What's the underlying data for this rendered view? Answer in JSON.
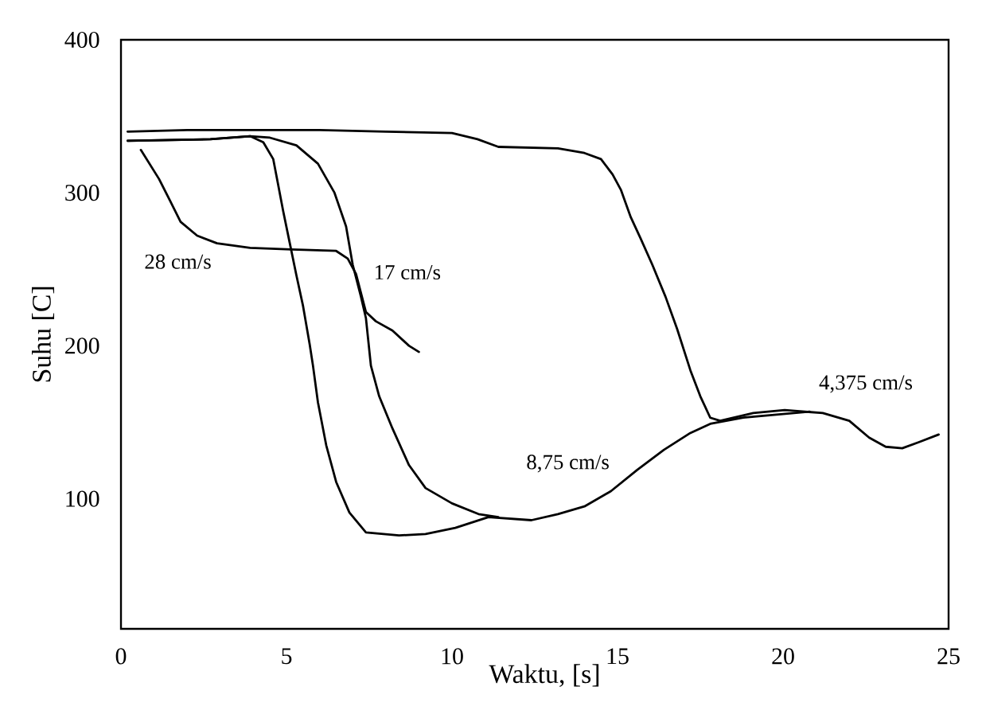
{
  "chart_data": {
    "type": "line",
    "xlabel": "Waktu, [s]",
    "ylabel": "Suhu [C]",
    "xlim": [
      0,
      25
    ],
    "ylim": [
      15,
      400
    ],
    "xticks": [
      0,
      5,
      10,
      15,
      20,
      25
    ],
    "yticks": [
      100,
      200,
      300,
      400
    ],
    "series": [
      {
        "name": "28 cm/s",
        "color": "#000000",
        "x": [
          0.6,
          1.15,
          1.5,
          1.8,
          2.3,
          2.9,
          3.9,
          5.15,
          6.5,
          6.85,
          7.1,
          7.4,
          7.7,
          8.2,
          8.7,
          9.0
        ],
        "values": [
          328,
          309,
          294,
          281,
          272,
          267,
          264,
          263,
          262,
          257,
          247,
          222,
          216,
          210,
          200,
          196
        ]
      },
      {
        "name": "17 cm/s",
        "color": "#000000",
        "x": [
          0.2,
          2.7,
          3.9,
          4.5,
          5.3,
          5.95,
          6.45,
          6.8,
          7.0,
          7.25,
          7.4,
          7.55,
          7.8,
          8.2,
          8.7,
          9.2,
          10.0,
          10.8,
          11.4
        ],
        "values": [
          334,
          335,
          337,
          336,
          331,
          319,
          300,
          278,
          253,
          232,
          218,
          187,
          167,
          146,
          122,
          107,
          97,
          90,
          88
        ]
      },
      {
        "name": "8,75 cm/s",
        "color": "#000000",
        "x": [
          0.2,
          2.7,
          3.9,
          4.3,
          4.6,
          4.75,
          4.9,
          5.1,
          5.3,
          5.5,
          5.7,
          5.8,
          5.95,
          6.2,
          6.5,
          6.9,
          7.4,
          8.4,
          9.2,
          10.1,
          11.1,
          12.4,
          13.2,
          14.0,
          14.8,
          15.6,
          16.4,
          17.2,
          17.8,
          18.8,
          19.8,
          20.8
        ],
        "values": [
          334,
          335,
          337,
          333,
          322,
          305,
          288,
          267,
          246,
          226,
          201,
          187,
          163,
          135,
          111,
          91,
          78,
          76,
          77,
          81,
          88,
          86,
          90,
          95,
          105,
          119,
          132,
          143,
          149,
          153,
          155,
          157
        ]
      },
      {
        "name": "4,375 cm/s",
        "color": "#000000",
        "x": [
          0.2,
          2,
          4,
          6,
          8,
          10,
          10.77,
          11.4,
          13.2,
          14.0,
          14.5,
          14.85,
          15.1,
          15.4,
          15.7,
          16.05,
          16.45,
          16.8,
          17.2,
          17.5,
          17.8,
          18.1,
          19.1,
          20.05,
          21.2,
          22.0,
          22.6,
          23.1,
          23.6,
          24.1,
          24.7
        ],
        "values": [
          340,
          341,
          341,
          341,
          340,
          339,
          335,
          330,
          329,
          326,
          322,
          312,
          302,
          284,
          270,
          253,
          232,
          211,
          184,
          167,
          153,
          151,
          156,
          158,
          156,
          151,
          140,
          134,
          133,
          137,
          142
        ]
      }
    ]
  }
}
